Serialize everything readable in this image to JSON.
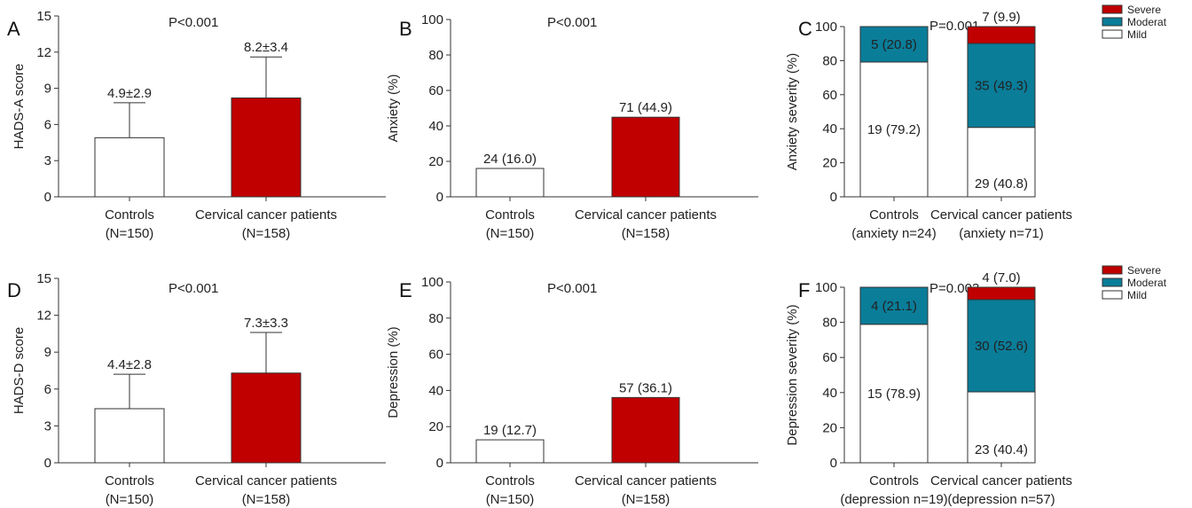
{
  "chart_data": [
    {
      "id": "A",
      "type": "bar",
      "panel_label": "A",
      "ylabel": "HADS-A score",
      "ylim": [
        0,
        15
      ],
      "yticks": [
        0,
        3,
        6,
        9,
        12,
        15
      ],
      "p_value": "P<0.001",
      "categories": [
        {
          "line1": "Controls",
          "line2": "(N=150)"
        },
        {
          "line1": "Cervical cancer patients",
          "line2": "(N=158)"
        }
      ],
      "values": [
        4.9,
        8.2
      ],
      "errors": [
        2.9,
        3.4
      ],
      "value_labels": [
        "4.9±2.9",
        "8.2±3.4"
      ],
      "colors": [
        "#ffffff",
        "#c00000"
      ]
    },
    {
      "id": "B",
      "type": "bar",
      "panel_label": "B",
      "ylabel": "Anxiety (%)",
      "ylim": [
        0,
        100
      ],
      "yticks": [
        0,
        20,
        40,
        60,
        80,
        100
      ],
      "p_value": "P<0.001",
      "categories": [
        {
          "line1": "Controls",
          "line2": "(N=150)"
        },
        {
          "line1": "Cervical cancer patients",
          "line2": "(N=158)"
        }
      ],
      "values": [
        16.0,
        44.9
      ],
      "value_labels": [
        "24 (16.0)",
        "71 (44.9)"
      ],
      "colors": [
        "#ffffff",
        "#c00000"
      ]
    },
    {
      "id": "C",
      "type": "stacked-bar",
      "panel_label": "C",
      "ylabel": "Anxiety severity (%)",
      "ylim": [
        0,
        100
      ],
      "yticks": [
        0,
        20,
        40,
        60,
        80,
        100
      ],
      "p_value": "P=0.001",
      "categories": [
        {
          "line1": "Controls",
          "line2": "(anxiety n=24)"
        },
        {
          "line1": "Cervical cancer patients",
          "line2": "(anxiety n=71)"
        }
      ],
      "series": [
        {
          "name": "Mild",
          "color": "#ffffff",
          "values": [
            79.2,
            40.8
          ],
          "labels": [
            "19 (79.2)",
            "29 (40.8)"
          ]
        },
        {
          "name": "Moderat",
          "color": "#0a7d99",
          "values": [
            20.8,
            49.3
          ],
          "labels": [
            "5 (20.8)",
            "35 (49.3)"
          ]
        },
        {
          "name": "Severe",
          "color": "#c00000",
          "values": [
            0,
            9.9
          ],
          "labels": [
            "",
            "7 (9.9)"
          ]
        }
      ],
      "legend": "top-right"
    },
    {
      "id": "D",
      "type": "bar",
      "panel_label": "D",
      "ylabel": "HADS-D score",
      "ylim": [
        0,
        15
      ],
      "yticks": [
        0,
        3,
        6,
        9,
        12,
        15
      ],
      "p_value": "P<0.001",
      "categories": [
        {
          "line1": "Controls",
          "line2": "(N=150)"
        },
        {
          "line1": "Cervical cancer patients",
          "line2": "(N=158)"
        }
      ],
      "values": [
        4.4,
        7.3
      ],
      "errors": [
        2.8,
        3.3
      ],
      "value_labels": [
        "4.4±2.8",
        "7.3±3.3"
      ],
      "colors": [
        "#ffffff",
        "#c00000"
      ]
    },
    {
      "id": "E",
      "type": "bar",
      "panel_label": "E",
      "ylabel": "Depression (%)",
      "ylim": [
        0,
        100
      ],
      "yticks": [
        0,
        20,
        40,
        60,
        80,
        100
      ],
      "p_value": "P<0.001",
      "categories": [
        {
          "line1": "Controls",
          "line2": "(N=150)"
        },
        {
          "line1": "Cervical cancer patients",
          "line2": "(N=158)"
        }
      ],
      "values": [
        12.7,
        36.1
      ],
      "value_labels": [
        "19 (12.7)",
        "57 (36.1)"
      ],
      "colors": [
        "#ffffff",
        "#c00000"
      ]
    },
    {
      "id": "F",
      "type": "stacked-bar",
      "panel_label": "F",
      "ylabel": "Depression severity (%)",
      "ylim": [
        0,
        100
      ],
      "yticks": [
        0,
        20,
        40,
        60,
        80,
        100
      ],
      "p_value": "P=0.003",
      "categories": [
        {
          "line1": "Controls",
          "line2": "(depression n=19)"
        },
        {
          "line1": "Cervical cancer patients",
          "line2": "(depression n=57)"
        }
      ],
      "series": [
        {
          "name": "Mild",
          "color": "#ffffff",
          "values": [
            78.9,
            40.4
          ],
          "labels": [
            "15 (78.9)",
            "23 (40.4)"
          ]
        },
        {
          "name": "Moderat",
          "color": "#0a7d99",
          "values": [
            21.1,
            52.6
          ],
          "labels": [
            "4 (21.1)",
            "30 (52.6)"
          ]
        },
        {
          "name": "Severe",
          "color": "#c00000",
          "values": [
            0,
            7.0
          ],
          "labels": [
            "",
            "4 (7.0)"
          ]
        }
      ],
      "legend": "top-right"
    }
  ]
}
